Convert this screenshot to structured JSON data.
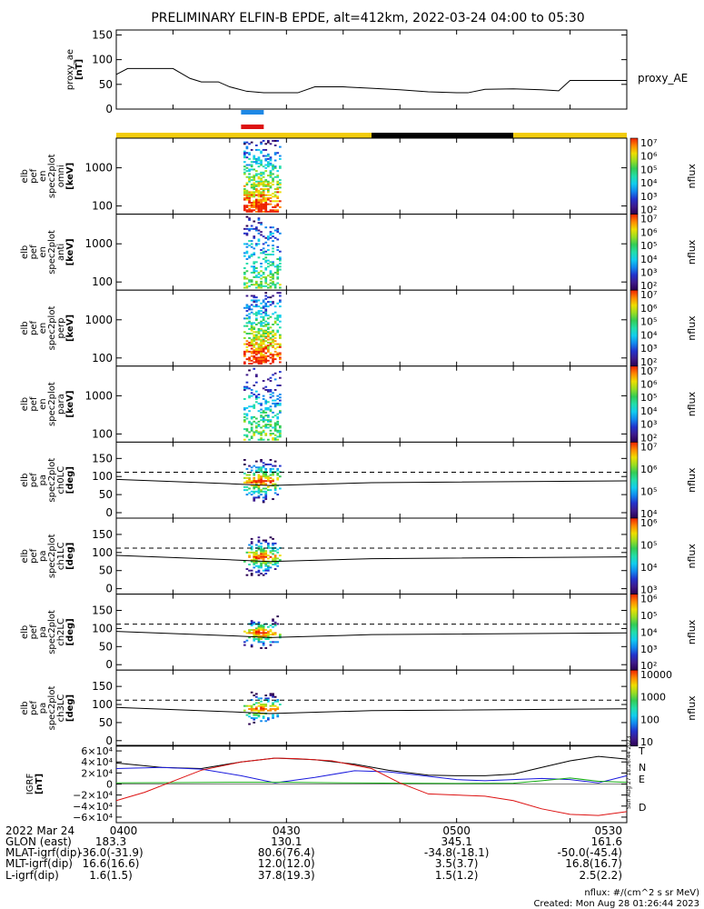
{
  "title": "PRELIMINARY ELFIN-B EPDE, alt=412km, 2022-03-24 04:00 to 05:30",
  "footer": {
    "units": "nflux: #/(cm^2 s sr MeV)",
    "created": "Created: Mon Aug 28 01:26:44 2023",
    "side_stamp": "Sun Aug 27 18:26:44 2023"
  },
  "colors": {
    "proxy_line": "#000000",
    "blue_bar": "#1e88e5",
    "red_bar": "#dd1111",
    "sun_bar": "#f2cc0c",
    "shadow_bar": "#000000",
    "N": "#1a1add",
    "E": "#11aa11",
    "D": "#dd1111",
    "total": "#000000"
  },
  "chart_data": [
    {
      "type": "line",
      "panel": "proxy_ae",
      "ylabel_lines": [
        "proxy_ae",
        "[nT]"
      ],
      "ylim": [
        0,
        160
      ],
      "yticks": [
        "0",
        "50",
        "100",
        "150"
      ],
      "series": [
        {
          "name": "proxy_AE",
          "x": [
            "04:00",
            "04:02",
            "04:05",
            "04:10",
            "04:13",
            "04:15",
            "04:18",
            "04:20",
            "04:23",
            "04:26",
            "04:28",
            "04:32",
            "04:35",
            "04:40",
            "04:45",
            "04:50",
            "04:55",
            "05:00",
            "05:02",
            "05:05",
            "05:10",
            "05:15",
            "05:18",
            "05:20",
            "05:25",
            "05:30"
          ],
          "values": [
            70,
            82,
            82,
            82,
            62,
            55,
            55,
            45,
            36,
            33,
            33,
            33,
            45,
            45,
            42,
            39,
            35,
            33,
            33,
            40,
            41,
            39,
            37,
            58,
            58,
            58
          ]
        }
      ]
    },
    {
      "type": "bar",
      "panel": "markers",
      "intervals": [
        {
          "color": "blue",
          "start": "04:22",
          "end": "04:26"
        },
        {
          "color": "red",
          "start": "04:22",
          "end": "04:26"
        }
      ],
      "illumination": [
        {
          "state": "sunlit",
          "start": "04:00",
          "end": "04:45"
        },
        {
          "state": "shadow",
          "start": "04:45",
          "end": "05:10"
        },
        {
          "state": "sunlit",
          "start": "05:10",
          "end": "05:30"
        }
      ]
    },
    {
      "type": "heatmap",
      "panel": "omni",
      "scale": "log",
      "ylabel_lines": [
        "elb",
        "pef",
        "en",
        "spec2plot",
        "omni",
        "[keV]"
      ],
      "yticks": [
        "100",
        "1000"
      ],
      "colorbar": {
        "label": "nflux",
        "ticks": [
          "10²",
          "10³",
          "10⁴",
          "10⁵",
          "10⁶",
          "10⁷"
        ]
      },
      "time_range": [
        "04:23",
        "04:28"
      ]
    },
    {
      "type": "heatmap",
      "panel": "anti",
      "scale": "log",
      "ylabel_lines": [
        "elb",
        "pef",
        "en",
        "spec2plot",
        "anti",
        "[keV]"
      ],
      "yticks": [
        "100",
        "1000"
      ],
      "colorbar": {
        "label": "nflux",
        "ticks": [
          "10²",
          "10³",
          "10⁴",
          "10⁵",
          "10⁶",
          "10⁷"
        ]
      },
      "time_range": [
        "04:23",
        "04:28"
      ]
    },
    {
      "type": "heatmap",
      "panel": "perp",
      "scale": "log",
      "ylabel_lines": [
        "elb",
        "pef",
        "en",
        "spec2plot",
        "perp",
        "[keV]"
      ],
      "yticks": [
        "100",
        "1000"
      ],
      "colorbar": {
        "label": "nflux",
        "ticks": [
          "10²",
          "10³",
          "10⁴",
          "10⁵",
          "10⁶",
          "10⁷"
        ]
      },
      "time_range": [
        "04:23",
        "04:28"
      ]
    },
    {
      "type": "heatmap",
      "panel": "para",
      "scale": "log",
      "ylabel_lines": [
        "elb",
        "pef",
        "en",
        "spec2plot",
        "para",
        "[keV]"
      ],
      "yticks": [
        "100",
        "1000"
      ],
      "colorbar": {
        "label": "nflux",
        "ticks": [
          "10²",
          "10³",
          "10⁴",
          "10⁵",
          "10⁶",
          "10⁷"
        ]
      },
      "time_range": [
        "04:23",
        "04:28"
      ]
    },
    {
      "type": "heatmap",
      "panel": "ch0LC",
      "ylabel_lines": [
        "elb",
        "pef",
        "pa",
        "spec2plot",
        "ch0LC",
        "[deg]"
      ],
      "ylim": [
        0,
        180
      ],
      "yticks": [
        "0",
        "50",
        "100",
        "150"
      ],
      "colorbar": {
        "label": "nflux",
        "ticks": [
          "10⁴",
          "10⁵",
          "10⁶",
          "10⁷"
        ]
      },
      "lines": {
        "solid_start": 92,
        "solid_mid": 75,
        "solid_end": 88,
        "dashed": 112
      }
    },
    {
      "type": "heatmap",
      "panel": "ch1LC",
      "ylabel_lines": [
        "elb",
        "pef",
        "pa",
        "spec2plot",
        "ch1LC",
        "[deg]"
      ],
      "ylim": [
        0,
        180
      ],
      "yticks": [
        "0",
        "50",
        "100",
        "150"
      ],
      "colorbar": {
        "label": "nflux",
        "ticks": [
          "10³",
          "10⁴",
          "10⁵",
          "10⁶"
        ]
      },
      "lines": {
        "solid_start": 92,
        "solid_mid": 75,
        "solid_end": 88,
        "dashed": 112
      }
    },
    {
      "type": "heatmap",
      "panel": "ch2LC",
      "ylabel_lines": [
        "elb",
        "pef",
        "pa",
        "spec2plot",
        "ch2LC",
        "[deg]"
      ],
      "ylim": [
        0,
        180
      ],
      "yticks": [
        "0",
        "50",
        "100",
        "150"
      ],
      "colorbar": {
        "label": "nflux",
        "ticks": [
          "10²",
          "10³",
          "10⁴",
          "10⁵",
          "10⁶"
        ]
      },
      "lines": {
        "solid_start": 92,
        "solid_mid": 75,
        "solid_end": 88,
        "dashed": 112
      }
    },
    {
      "type": "heatmap",
      "panel": "ch3LC",
      "ylabel_lines": [
        "elb",
        "pef",
        "pa",
        "spec2plot",
        "ch3LC",
        "[deg]"
      ],
      "ylim": [
        0,
        180
      ],
      "yticks": [
        "0",
        "50",
        "100",
        "150"
      ],
      "colorbar": {
        "label": "nflux",
        "ticks": [
          "10",
          "100",
          "1000",
          "10000"
        ]
      },
      "lines": {
        "solid_start": 92,
        "solid_mid": 75,
        "solid_end": 88,
        "dashed": 112
      }
    },
    {
      "type": "line",
      "panel": "igrf",
      "ylabel_lines": [
        "IGRF",
        "[nT]"
      ],
      "ylim": [
        -70000,
        70000
      ],
      "yticks": [
        "−6×10⁴",
        "−4×10⁴",
        "−2×10⁴",
        "0",
        "2×10⁴",
        "4×10⁴",
        "6×10⁴"
      ],
      "ytick_values": [
        -60000,
        -40000,
        -20000,
        0,
        20000,
        40000,
        60000
      ],
      "series": [
        {
          "name": "T",
          "color": "#000000",
          "x": [
            "04:00",
            "04:08",
            "04:15",
            "04:22",
            "04:28",
            "04:35",
            "04:42",
            "04:48",
            "04:55",
            "05:00",
            "05:05",
            "05:10",
            "05:15",
            "05:20",
            "05:25",
            "05:30"
          ],
          "values": [
            38000,
            30000,
            28000,
            40000,
            47000,
            44000,
            36000,
            25000,
            16000,
            15000,
            15000,
            18000,
            30000,
            42000,
            50000,
            45000
          ]
        },
        {
          "name": "N",
          "color": "#1a1add",
          "x": [
            "04:00",
            "04:08",
            "04:15",
            "04:22",
            "04:28",
            "04:35",
            "04:42",
            "04:48",
            "04:55",
            "05:00",
            "05:05",
            "05:10",
            "05:15",
            "05:20",
            "05:25",
            "05:30"
          ],
          "values": [
            28000,
            30000,
            27000,
            15000,
            2000,
            12000,
            24000,
            22000,
            14000,
            8000,
            6000,
            8000,
            10000,
            8000,
            2000,
            15000
          ]
        },
        {
          "name": "E",
          "color": "#11aa11",
          "x": [
            "04:00",
            "04:10",
            "04:20",
            "04:30",
            "04:40",
            "04:50",
            "05:00",
            "05:10",
            "05:15",
            "05:20",
            "05:25",
            "05:30"
          ],
          "values": [
            2000,
            2500,
            3000,
            3000,
            2000,
            1500,
            1000,
            1500,
            6000,
            11000,
            5000,
            3000
          ]
        },
        {
          "name": "D",
          "color": "#dd1111",
          "x": [
            "04:00",
            "04:05",
            "04:10",
            "04:15",
            "04:22",
            "04:28",
            "04:32",
            "04:38",
            "04:45",
            "04:50",
            "04:55",
            "05:00",
            "05:05",
            "05:10",
            "05:15",
            "05:20",
            "05:25",
            "05:30"
          ],
          "values": [
            -30000,
            -15000,
            5000,
            25000,
            40000,
            47000,
            46000,
            42000,
            28000,
            2000,
            -18000,
            -20000,
            -22000,
            -30000,
            -45000,
            -55000,
            -57000,
            -50000
          ]
        }
      ]
    }
  ],
  "time_axis": {
    "row_labels": [
      "2022 Mar 24",
      "GLON (east)",
      "MLAT-igrf(dip)",
      "MLT-igrf(dip)",
      "L-igrf(dip)"
    ],
    "columns": [
      {
        "time": "04:00",
        "label": "0400",
        "values": [
          "183.3",
          "-36.0(-31.9)",
          "16.6(16.6)",
          "1.6(1.5)"
        ]
      },
      {
        "time": "04:30",
        "label": "0430",
        "values": [
          "130.1",
          "80.6(76.4)",
          "12.0(12.0)",
          "37.8(19.3)"
        ]
      },
      {
        "time": "05:00",
        "label": "0500",
        "values": [
          "345.1",
          "-34.8(-18.1)",
          "3.5(3.7)",
          "1.5(1.2)"
        ]
      },
      {
        "time": "05:30",
        "label": "0530",
        "values": [
          "161.6",
          "-50.0(-45.4)",
          "16.8(16.7)",
          "2.5(2.2)"
        ]
      }
    ]
  }
}
